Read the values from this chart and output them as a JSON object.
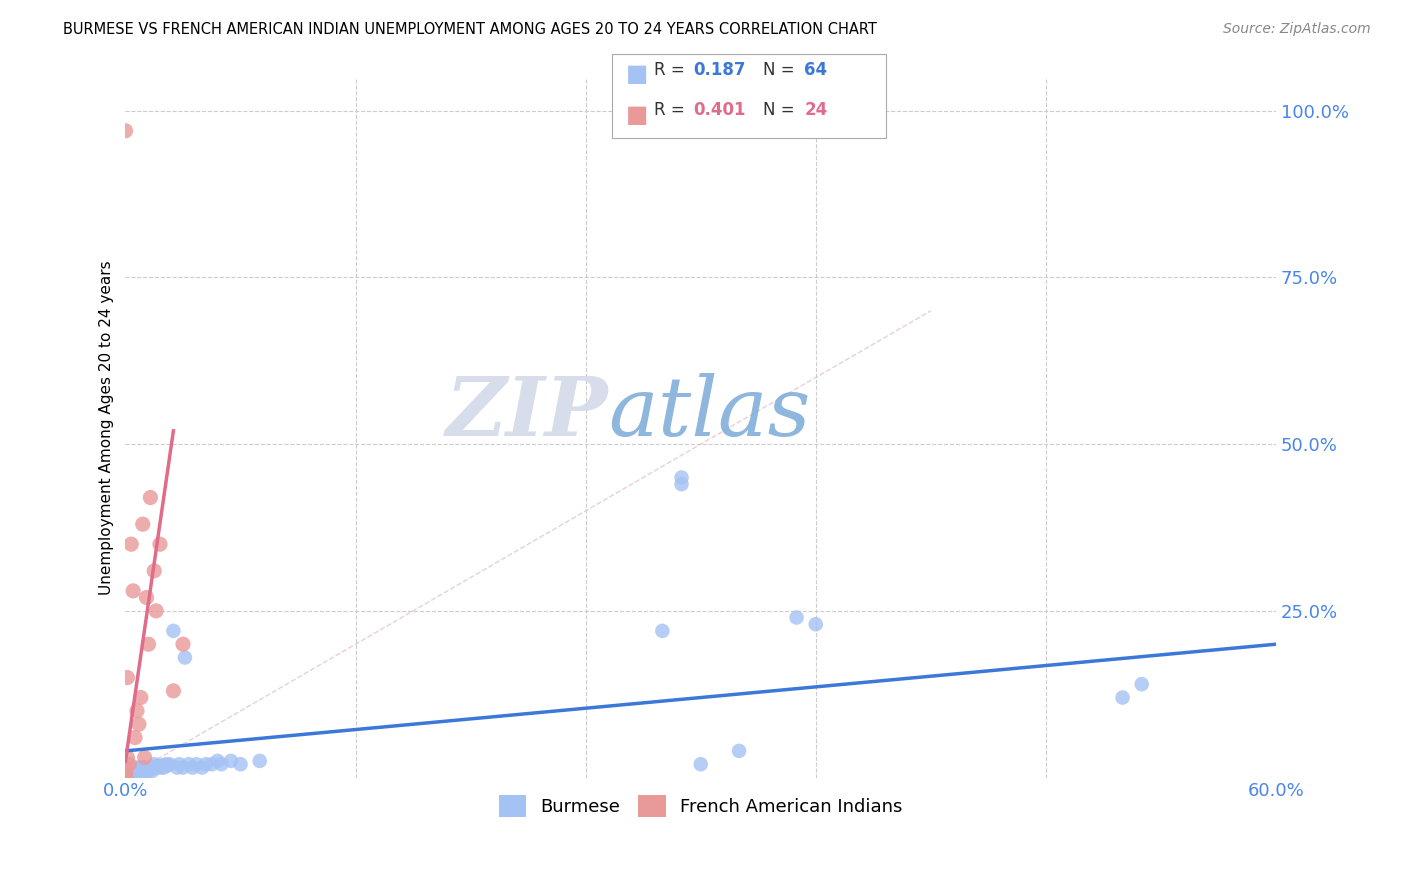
{
  "title": "BURMESE VS FRENCH AMERICAN INDIAN UNEMPLOYMENT AMONG AGES 20 TO 24 YEARS CORRELATION CHART",
  "source": "Source: ZipAtlas.com",
  "ylabel": "Unemployment Among Ages 20 to 24 years",
  "xlim": [
    0.0,
    0.6
  ],
  "ylim": [
    0.0,
    1.05
  ],
  "burmese_R": 0.187,
  "burmese_N": 64,
  "fai_R": 0.401,
  "fai_N": 24,
  "burmese_color": "#a4c2f4",
  "fai_color": "#ea9999",
  "burmese_line_color": "#3c78d8",
  "fai_line_color": "#e06c8a",
  "ref_line_color": "#ddbbcc",
  "watermark_zip_color": "#c9d7f0",
  "watermark_atlas_color": "#8ab4e8",
  "tick_color": "#4a86e8",
  "bx": [
    0.0,
    0.0,
    0.0,
    0.0,
    0.001,
    0.001,
    0.002,
    0.002,
    0.003,
    0.003,
    0.004,
    0.004,
    0.005,
    0.005,
    0.005,
    0.006,
    0.006,
    0.007,
    0.007,
    0.008,
    0.008,
    0.009,
    0.009,
    0.01,
    0.01,
    0.011,
    0.012,
    0.013,
    0.014,
    0.015,
    0.015,
    0.016,
    0.017,
    0.018,
    0.019,
    0.02,
    0.021,
    0.022,
    0.023,
    0.025,
    0.027,
    0.028,
    0.03,
    0.031,
    0.033,
    0.035,
    0.037,
    0.04,
    0.042,
    0.045,
    0.048,
    0.05,
    0.055,
    0.06,
    0.07,
    0.28,
    0.29,
    0.29,
    0.3,
    0.32,
    0.35,
    0.36,
    0.52,
    0.53
  ],
  "by": [
    0.005,
    0.008,
    0.01,
    0.015,
    0.005,
    0.01,
    0.008,
    0.012,
    0.005,
    0.01,
    0.005,
    0.01,
    0.005,
    0.01,
    0.015,
    0.008,
    0.012,
    0.008,
    0.015,
    0.008,
    0.012,
    0.008,
    0.015,
    0.008,
    0.015,
    0.012,
    0.01,
    0.015,
    0.01,
    0.015,
    0.02,
    0.015,
    0.018,
    0.015,
    0.018,
    0.015,
    0.02,
    0.018,
    0.02,
    0.22,
    0.015,
    0.02,
    0.015,
    0.18,
    0.02,
    0.015,
    0.02,
    0.015,
    0.02,
    0.02,
    0.025,
    0.02,
    0.025,
    0.02,
    0.025,
    0.22,
    0.44,
    0.45,
    0.02,
    0.04,
    0.24,
    0.23,
    0.12,
    0.14
  ],
  "fx": [
    0.0,
    0.0,
    0.0,
    0.0,
    0.0,
    0.001,
    0.001,
    0.002,
    0.003,
    0.004,
    0.005,
    0.006,
    0.007,
    0.008,
    0.009,
    0.01,
    0.011,
    0.012,
    0.013,
    0.015,
    0.016,
    0.018,
    0.025,
    0.03
  ],
  "fy": [
    0.0,
    0.005,
    0.01,
    0.015,
    0.97,
    0.03,
    0.15,
    0.02,
    0.35,
    0.28,
    0.06,
    0.1,
    0.08,
    0.12,
    0.38,
    0.03,
    0.27,
    0.2,
    0.42,
    0.31,
    0.25,
    0.35,
    0.13,
    0.2
  ],
  "fai_line_x0": 0.0,
  "fai_line_y0": 0.025,
  "fai_line_x1": 0.025,
  "fai_line_y1": 0.52,
  "blue_line_x0": 0.0,
  "blue_line_y0": 0.04,
  "blue_line_x1": 0.6,
  "blue_line_y1": 0.2
}
